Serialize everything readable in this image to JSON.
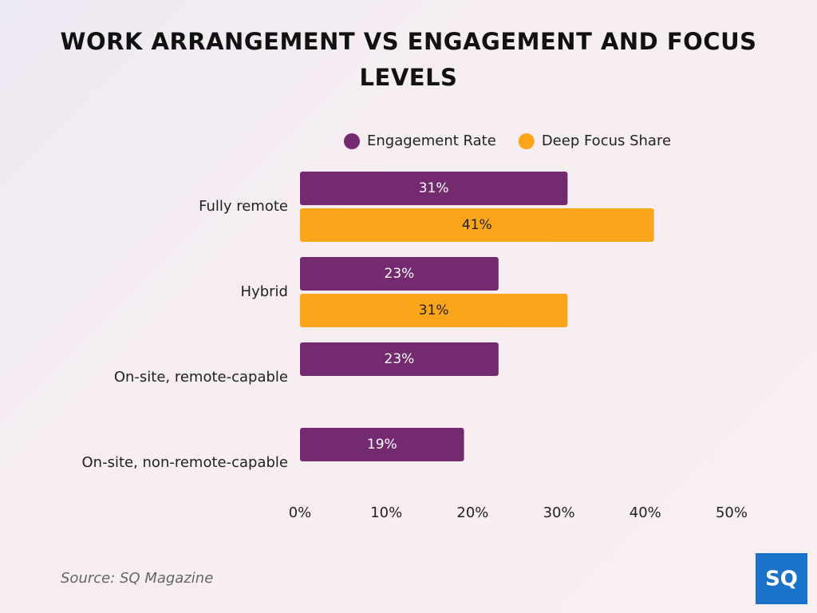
{
  "chart_data": {
    "type": "bar",
    "orientation": "horizontal",
    "title": "WORK ARRANGEMENT VS ENGAGEMENT AND FOCUS LEVELS",
    "categories": [
      "Fully remote",
      "Hybrid",
      "On-site, remote-capable",
      "On-site, non-remote-capable"
    ],
    "series": [
      {
        "name": "Engagement Rate",
        "color": "#732a6e",
        "values": [
          31,
          23,
          23,
          19
        ],
        "value_labels": [
          "31%",
          "23%",
          "23%",
          "19%"
        ]
      },
      {
        "name": "Deep Focus Share",
        "color": "#fba51a",
        "values": [
          41,
          31,
          null,
          null
        ],
        "value_labels": [
          "41%",
          "31%",
          null,
          null
        ]
      }
    ],
    "xlim": [
      0,
      50
    ],
    "xticks": [
      {
        "value": 0,
        "label": "0%"
      },
      {
        "value": 10,
        "label": "10%"
      },
      {
        "value": 20,
        "label": "20%"
      },
      {
        "value": 30,
        "label": "30%"
      },
      {
        "value": 40,
        "label": "40%"
      },
      {
        "value": 50,
        "label": "50%"
      }
    ],
    "grid": false,
    "legend": "top",
    "source": "Source: SQ Magazine",
    "logo": "SQ"
  }
}
